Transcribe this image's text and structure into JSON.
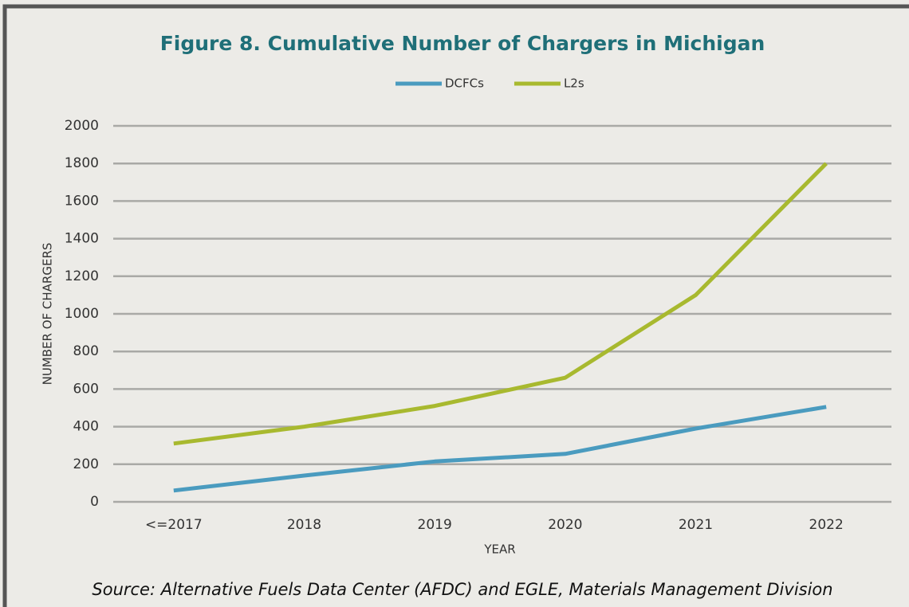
{
  "chart_data": {
    "type": "line",
    "title": "Figure 8. Cumulative Number of Chargers in Michigan",
    "x_label": "YEAR",
    "y_label": "NUMBER OF CHARGERS",
    "source": "Source: Alternative Fuels Data Center (AFDC) and EGLE, Materials Management Division",
    "categories": [
      "<=2017",
      "2018",
      "2019",
      "2020",
      "2021",
      "2022"
    ],
    "series": [
      {
        "name": "DCFCs",
        "color": "#4a9bbf",
        "values": [
          60,
          140,
          215,
          255,
          390,
          505
        ]
      },
      {
        "name": "L2s",
        "color": "#a8b92f",
        "values": [
          310,
          400,
          510,
          660,
          1100,
          1800
        ]
      }
    ],
    "ylim": [
      0,
      2000
    ],
    "yticks": [
      0,
      200,
      400,
      600,
      800,
      1000,
      1200,
      1400,
      1600,
      1800,
      2000
    ],
    "grid": true,
    "legend": "top"
  }
}
